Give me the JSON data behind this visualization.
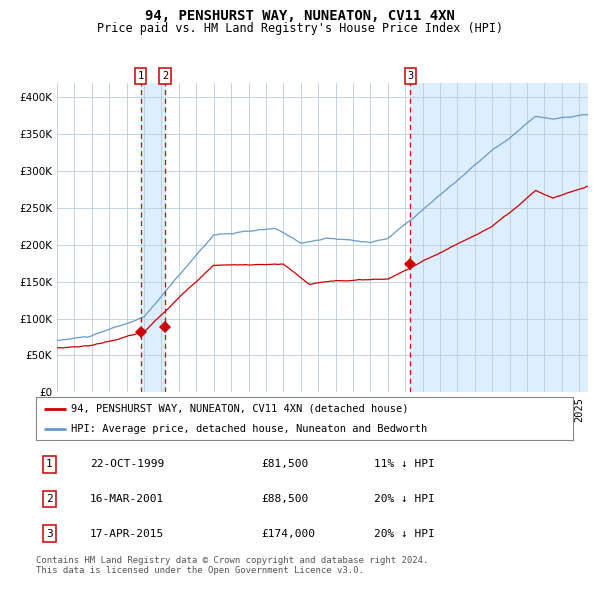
{
  "title": "94, PENSHURST WAY, NUNEATON, CV11 4XN",
  "subtitle": "Price paid vs. HM Land Registry's House Price Index (HPI)",
  "footer": "Contains HM Land Registry data © Crown copyright and database right 2024.\nThis data is licensed under the Open Government Licence v3.0.",
  "legend_label_red": "94, PENSHURST WAY, NUNEATON, CV11 4XN (detached house)",
  "legend_label_blue": "HPI: Average price, detached house, Nuneaton and Bedworth",
  "transactions": [
    {
      "num": 1,
      "date": "22-OCT-1999",
      "price": 81500,
      "hpi_diff": "11% ↓ HPI",
      "year_x": 1999.8
    },
    {
      "num": 2,
      "date": "16-MAR-2001",
      "price": 88500,
      "hpi_diff": "20% ↓ HPI",
      "year_x": 2001.2
    },
    {
      "num": 3,
      "date": "17-APR-2015",
      "price": 174000,
      "hpi_diff": "20% ↓ HPI",
      "year_x": 2015.3
    }
  ],
  "red_line_color": "#cc0000",
  "blue_line_color": "#6699cc",
  "dashed_line_color": "#cc0000",
  "shade_color": "#ddeeff",
  "grid_color": "#bbccdd",
  "bg_color": "#ffffff",
  "ylim": [
    0,
    420000
  ],
  "xlim_start": 1995.0,
  "xlim_end": 2025.5,
  "title_fontsize": 10,
  "subtitle_fontsize": 8.5,
  "tick_fontsize": 7.5,
  "footer_fontsize": 6.5
}
